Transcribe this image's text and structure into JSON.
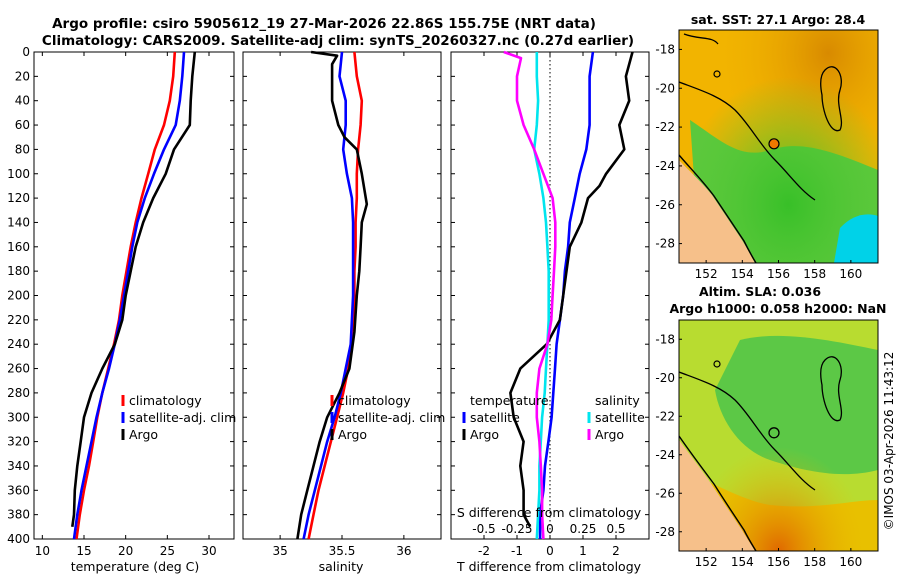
{
  "title": {
    "line1": "Argo profile: csiro 5905612_19 27-Mar-2026 22.86S 155.75E (NRT data)",
    "line2": "Climatology: CARS2009. Satellite-adj clim: synTS_20260327.nc (0.27d earlier)"
  },
  "timestamp": "©IMOS 03-Apr-2026 11:43:12",
  "colors": {
    "climatology": "#ff0000",
    "satellite": "#0000ff",
    "argo": "#000000",
    "sat_salinity": "#00e5ee",
    "argo_salinity": "#ff00ff"
  },
  "chart_data": [
    {
      "type": "line",
      "panel": "temperature",
      "xlabel": "temperature (deg C)",
      "xlim": [
        9,
        33
      ],
      "ylim": [
        400,
        0
      ],
      "xticks": [
        10,
        15,
        20,
        25,
        30
      ],
      "yticks": [
        0,
        20,
        40,
        60,
        80,
        100,
        120,
        140,
        160,
        180,
        200,
        220,
        240,
        260,
        280,
        300,
        320,
        340,
        360,
        380,
        400
      ],
      "legend": [
        "climatology",
        "satellite-adj. clim",
        "Argo"
      ],
      "series": [
        {
          "name": "climatology",
          "color": "#ff0000",
          "points": [
            [
              25.9,
              0
            ],
            [
              25.7,
              20
            ],
            [
              25.3,
              40
            ],
            [
              24.6,
              60
            ],
            [
              23.5,
              80
            ],
            [
              22.7,
              100
            ],
            [
              21.9,
              120
            ],
            [
              21.2,
              140
            ],
            [
              20.6,
              160
            ],
            [
              20.1,
              180
            ],
            [
              19.6,
              200
            ],
            [
              19.2,
              220
            ],
            [
              18.6,
              240
            ],
            [
              17.9,
              260
            ],
            [
              17.2,
              280
            ],
            [
              16.6,
              300
            ],
            [
              16.1,
              320
            ],
            [
              15.6,
              340
            ],
            [
              15.0,
              360
            ],
            [
              14.5,
              380
            ],
            [
              14.1,
              400
            ]
          ]
        },
        {
          "name": "satellite-adj. clim",
          "color": "#0000ff",
          "points": [
            [
              27.0,
              0
            ],
            [
              26.8,
              20
            ],
            [
              26.5,
              40
            ],
            [
              26.0,
              60
            ],
            [
              24.6,
              80
            ],
            [
              23.4,
              100
            ],
            [
              22.3,
              120
            ],
            [
              21.4,
              140
            ],
            [
              20.8,
              160
            ],
            [
              20.3,
              180
            ],
            [
              19.8,
              200
            ],
            [
              19.3,
              220
            ],
            [
              18.7,
              240
            ],
            [
              18.0,
              260
            ],
            [
              17.2,
              280
            ],
            [
              16.5,
              300
            ],
            [
              15.9,
              320
            ],
            [
              15.3,
              340
            ],
            [
              14.7,
              360
            ],
            [
              14.2,
              380
            ],
            [
              13.8,
              400
            ]
          ]
        },
        {
          "name": "Argo",
          "color": "#000000",
          "points": [
            [
              28.3,
              0
            ],
            [
              28.0,
              20
            ],
            [
              27.8,
              40
            ],
            [
              27.7,
              60
            ],
            [
              25.8,
              80
            ],
            [
              24.8,
              100
            ],
            [
              23.3,
              120
            ],
            [
              22.1,
              140
            ],
            [
              21.2,
              160
            ],
            [
              20.6,
              180
            ],
            [
              20.0,
              200
            ],
            [
              19.6,
              220
            ],
            [
              18.7,
              240
            ],
            [
              17.2,
              260
            ],
            [
              15.9,
              280
            ],
            [
              15.0,
              300
            ],
            [
              14.6,
              320
            ],
            [
              14.2,
              340
            ],
            [
              13.9,
              360
            ],
            [
              13.8,
              380
            ],
            [
              13.6,
              390
            ]
          ]
        }
      ]
    },
    {
      "type": "line",
      "panel": "salinity",
      "xlabel": "salinity",
      "xlim": [
        34.7,
        36.3
      ],
      "ylim": [
        400,
        0
      ],
      "xticks": [
        35,
        35.5,
        36
      ],
      "legend": [
        "climatology",
        "satellite-adj. clim",
        "Argo"
      ],
      "series": [
        {
          "name": "climatology",
          "color": "#ff0000",
          "points": [
            [
              35.6,
              0
            ],
            [
              35.62,
              20
            ],
            [
              35.66,
              40
            ],
            [
              35.65,
              60
            ],
            [
              35.63,
              80
            ],
            [
              35.62,
              100
            ],
            [
              35.62,
              120
            ],
            [
              35.61,
              140
            ],
            [
              35.61,
              160
            ],
            [
              35.6,
              180
            ],
            [
              35.6,
              200
            ],
            [
              35.59,
              220
            ],
            [
              35.58,
              240
            ],
            [
              35.55,
              260
            ],
            [
              35.51,
              280
            ],
            [
              35.46,
              300
            ],
            [
              35.41,
              320
            ],
            [
              35.36,
              340
            ],
            [
              35.31,
              360
            ],
            [
              35.27,
              380
            ],
            [
              35.23,
              400
            ]
          ]
        },
        {
          "name": "satellite-adj. clim",
          "color": "#0000ff",
          "points": [
            [
              35.5,
              0
            ],
            [
              35.48,
              20
            ],
            [
              35.53,
              40
            ],
            [
              35.53,
              60
            ],
            [
              35.51,
              80
            ],
            [
              35.54,
              100
            ],
            [
              35.58,
              120
            ],
            [
              35.59,
              140
            ],
            [
              35.59,
              160
            ],
            [
              35.59,
              180
            ],
            [
              35.59,
              200
            ],
            [
              35.58,
              220
            ],
            [
              35.57,
              240
            ],
            [
              35.53,
              260
            ],
            [
              35.49,
              280
            ],
            [
              35.44,
              300
            ],
            [
              35.38,
              320
            ],
            [
              35.33,
              340
            ],
            [
              35.28,
              360
            ],
            [
              35.23,
              380
            ],
            [
              35.19,
              400
            ]
          ]
        },
        {
          "name": "Argo",
          "color": "#000000",
          "points": [
            [
              35.25,
              0
            ],
            [
              35.46,
              3
            ],
            [
              35.42,
              10
            ],
            [
              35.42,
              40
            ],
            [
              35.47,
              60
            ],
            [
              35.52,
              70
            ],
            [
              35.62,
              80
            ],
            [
              35.66,
              100
            ],
            [
              35.7,
              125
            ],
            [
              35.66,
              140
            ],
            [
              35.65,
              160
            ],
            [
              35.64,
              180
            ],
            [
              35.62,
              200
            ],
            [
              35.6,
              230
            ],
            [
              35.56,
              260
            ],
            [
              35.48,
              280
            ],
            [
              35.38,
              300
            ],
            [
              35.32,
              320
            ],
            [
              35.27,
              340
            ],
            [
              35.22,
              360
            ],
            [
              35.17,
              380
            ],
            [
              35.14,
              400
            ]
          ]
        }
      ]
    },
    {
      "type": "line",
      "panel": "differences",
      "xlabel": "T difference from climatology",
      "xlabel_top": "S difference from climatology",
      "xlim": [
        -3,
        3
      ],
      "ylim": [
        400,
        0
      ],
      "xticks": [
        -2,
        -1,
        0,
        1,
        2
      ],
      "s_xticks": [
        -0.5,
        -0.25,
        0,
        0.25,
        0.5
      ],
      "s_scale": 4,
      "legend_temperature_title": "temperature",
      "legend_salinity_title": "salinity",
      "legend_temperature": [
        "satellite",
        "Argo"
      ],
      "legend_salinity": [
        "satellite",
        "Argo"
      ],
      "series": [
        {
          "name": "T satellite",
          "color": "#0000ff",
          "points": [
            [
              1.3,
              0
            ],
            [
              1.2,
              20
            ],
            [
              1.2,
              40
            ],
            [
              1.2,
              60
            ],
            [
              1.1,
              80
            ],
            [
              0.9,
              100
            ],
            [
              0.75,
              120
            ],
            [
              0.6,
              140
            ],
            [
              0.55,
              160
            ],
            [
              0.45,
              180
            ],
            [
              0.4,
              200
            ],
            [
              0.3,
              220
            ],
            [
              0.2,
              240
            ],
            [
              0.15,
              260
            ],
            [
              0.1,
              280
            ],
            [
              0.05,
              300
            ],
            [
              -0.05,
              320
            ],
            [
              -0.15,
              340
            ],
            [
              -0.2,
              360
            ],
            [
              -0.3,
              380
            ],
            [
              -0.3,
              400
            ]
          ]
        },
        {
          "name": "T Argo",
          "color": "#000000",
          "points": [
            [
              2.5,
              0
            ],
            [
              2.3,
              20
            ],
            [
              2.4,
              40
            ],
            [
              2.1,
              60
            ],
            [
              2.25,
              80
            ],
            [
              1.7,
              100
            ],
            [
              1.5,
              110
            ],
            [
              1.15,
              120
            ],
            [
              0.95,
              140
            ],
            [
              0.6,
              160
            ],
            [
              0.5,
              180
            ],
            [
              0.4,
              200
            ],
            [
              0.3,
              220
            ],
            [
              -0.1,
              240
            ],
            [
              -0.9,
              260
            ],
            [
              -1.2,
              280
            ],
            [
              -1.1,
              300
            ],
            [
              -0.8,
              320
            ],
            [
              -0.9,
              340
            ],
            [
              -0.8,
              360
            ],
            [
              -0.8,
              380
            ],
            [
              -0.6,
              390
            ]
          ]
        },
        {
          "name": "S satellite",
          "color": "#00e5ee",
          "points": [
            [
              -0.1,
              0
            ],
            [
              -0.1,
              20
            ],
            [
              -0.09,
              40
            ],
            [
              -0.1,
              60
            ],
            [
              -0.12,
              80
            ],
            [
              -0.08,
              100
            ],
            [
              -0.05,
              120
            ],
            [
              -0.03,
              140
            ],
            [
              -0.02,
              160
            ],
            [
              -0.01,
              180
            ],
            [
              -0.01,
              200
            ],
            [
              -0.01,
              220
            ],
            [
              -0.02,
              240
            ],
            [
              -0.03,
              260
            ],
            [
              -0.04,
              280
            ],
            [
              -0.06,
              300
            ],
            [
              -0.07,
              320
            ],
            [
              -0.08,
              340
            ],
            [
              -0.08,
              360
            ],
            [
              -0.09,
              380
            ],
            [
              -0.1,
              400
            ]
          ]
        },
        {
          "name": "S Argo",
          "color": "#ff00ff",
          "points": [
            [
              -0.35,
              0
            ],
            [
              -0.22,
              5
            ],
            [
              -0.25,
              20
            ],
            [
              -0.25,
              40
            ],
            [
              -0.2,
              60
            ],
            [
              -0.12,
              80
            ],
            [
              -0.05,
              100
            ],
            [
              0.02,
              120
            ],
            [
              0.04,
              140
            ],
            [
              0.04,
              160
            ],
            [
              0.03,
              180
            ],
            [
              0.02,
              200
            ],
            [
              0.01,
              220
            ],
            [
              -0.02,
              240
            ],
            [
              -0.08,
              260
            ],
            [
              -0.1,
              280
            ],
            [
              -0.1,
              300
            ],
            [
              -0.08,
              320
            ],
            [
              -0.07,
              340
            ],
            [
              -0.06,
              360
            ],
            [
              -0.06,
              380
            ],
            [
              -0.05,
              400
            ]
          ]
        }
      ]
    },
    {
      "type": "heatmap",
      "panel": "sst_map",
      "title": "sat. SST: 27.1 Argo: 28.4",
      "xlim": [
        150.5,
        161.5
      ],
      "ylim": [
        -29,
        -17
      ],
      "xticks": [
        152,
        154,
        156,
        158,
        160
      ],
      "yticks": [
        -18,
        -20,
        -22,
        -24,
        -26,
        -28
      ],
      "argo_marker": [
        155.75,
        -22.86
      ],
      "colors": {
        "land": "#f6c08a",
        "warm": "#e8a000",
        "mid": "#f5c800",
        "cool": "#58c838",
        "cold": "#00d8e8"
      }
    },
    {
      "type": "heatmap",
      "panel": "sla_map",
      "title": "Altim. SLA: 0.036",
      "subtitle": "Argo h1000: 0.058 h2000: NaN",
      "xlim": [
        150.5,
        161.5
      ],
      "ylim": [
        -29,
        -17
      ],
      "xticks": [
        152,
        154,
        156,
        158,
        160
      ],
      "yticks": [
        -18,
        -20,
        -22,
        -24,
        -26,
        -28
      ],
      "argo_marker": [
        155.75,
        -22.86
      ],
      "colors": {
        "land": "#f6c08a",
        "high": "#e07000",
        "mid": "#d8e040",
        "low": "#48c048"
      }
    }
  ]
}
